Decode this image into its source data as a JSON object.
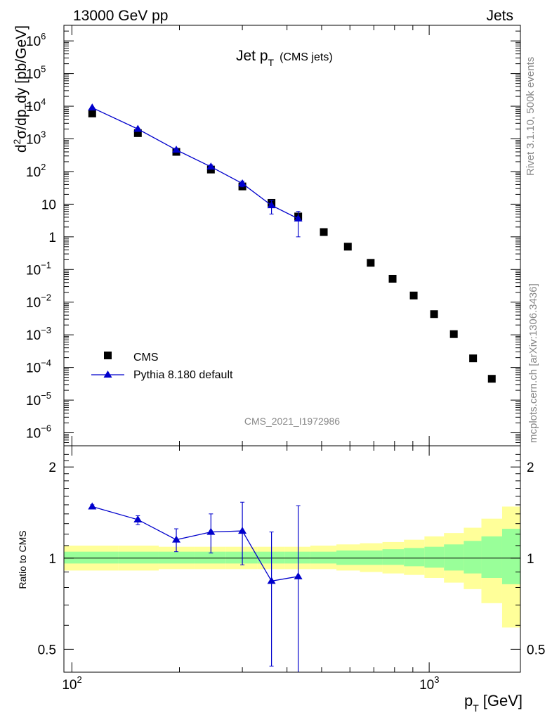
{
  "header": {
    "left": "13000 GeV pp",
    "right": "Jets"
  },
  "side_text": {
    "rivet": "Rivet 3.1.10,  500k events",
    "mcplots": "mcplots.cern.ch [arXiv:1306.3436]"
  },
  "colors": {
    "data": "#000000",
    "mc": "#0000cc",
    "band_inner": "#99ff99",
    "band_outer": "#ffff99",
    "watermark": "#888888"
  },
  "chart_data": [
    {
      "type": "scatter",
      "title_main": "Jet p",
      "title_sub": "T",
      "title_tail": "(CMS jets)",
      "ylabel_parts": [
        "d",
        "2",
        "σ/dp",
        "T",
        "dy [pb/GeV]"
      ],
      "analysis_id": "CMS_2021_I1972986",
      "xscale": "log",
      "yscale": "log",
      "xlim": [
        95,
        1800
      ],
      "ylim": [
        4e-07,
        3000000.0
      ],
      "ytick_labels": [
        {
          "value": 1000000.0,
          "mant": "10",
          "exp": "6"
        },
        {
          "value": 100000.0,
          "mant": "10",
          "exp": "5"
        },
        {
          "value": 10000.0,
          "mant": "10",
          "exp": "4"
        },
        {
          "value": 1000.0,
          "mant": "10",
          "exp": "3"
        },
        {
          "value": 100.0,
          "mant": "10",
          "exp": "2"
        },
        {
          "value": 10,
          "mant": "10",
          "exp": ""
        },
        {
          "value": 1,
          "mant": "1",
          "exp": ""
        },
        {
          "value": 0.1,
          "mant": "10",
          "exp": "−1"
        },
        {
          "value": 0.01,
          "mant": "10",
          "exp": "−2"
        },
        {
          "value": 0.001,
          "mant": "10",
          "exp": "−3"
        },
        {
          "value": 0.0001,
          "mant": "10",
          "exp": "−4"
        },
        {
          "value": 1e-05,
          "mant": "10",
          "exp": "−5"
        },
        {
          "value": 1e-06,
          "mant": "10",
          "exp": "−6"
        }
      ],
      "legend": {
        "placement": "bottom-left",
        "entries": [
          "CMS",
          "Pythia 8.180 default"
        ]
      },
      "series": [
        {
          "name": "CMS",
          "marker": "square",
          "points": [
            {
              "x": 114,
              "y": 6000
            },
            {
              "x": 153,
              "y": 1500
            },
            {
              "x": 196,
              "y": 400
            },
            {
              "x": 245,
              "y": 115
            },
            {
              "x": 300,
              "y": 35
            },
            {
              "x": 362,
              "y": 11
            },
            {
              "x": 430,
              "y": 4.2
            },
            {
              "x": 507,
              "y": 1.4
            },
            {
              "x": 592,
              "y": 0.5
            },
            {
              "x": 686,
              "y": 0.16
            },
            {
              "x": 790,
              "y": 0.052
            },
            {
              "x": 905,
              "y": 0.016
            },
            {
              "x": 1032,
              "y": 0.0043
            },
            {
              "x": 1172,
              "y": 0.00105
            },
            {
              "x": 1327,
              "y": 0.00019
            },
            {
              "x": 1497,
              "y": 4.5e-05
            }
          ]
        },
        {
          "name": "Pythia 8.180 default",
          "marker": "triangle",
          "line": true,
          "points": [
            {
              "x": 114,
              "y": 9000,
              "lo": 8600,
              "hi": 9400
            },
            {
              "x": 153,
              "y": 2000,
              "lo": 1900,
              "hi": 2100
            },
            {
              "x": 196,
              "y": 460,
              "lo": 420,
              "hi": 500
            },
            {
              "x": 245,
              "y": 140,
              "lo": 120,
              "hi": 160
            },
            {
              "x": 300,
              "y": 43,
              "lo": 34,
              "hi": 51
            },
            {
              "x": 362,
              "y": 9.2,
              "lo": 5.0,
              "hi": 13.0
            },
            {
              "x": 430,
              "y": 3.6,
              "lo": 1.0,
              "hi": 6.0
            }
          ]
        }
      ]
    },
    {
      "type": "scatter",
      "ylabel": "Ratio to CMS",
      "xlabel_main": "p",
      "xlabel_sub": "T",
      "xlabel_tail": "[GeV]",
      "xscale": "log",
      "yscale": "log",
      "xlim": [
        95,
        1800
      ],
      "ylim": [
        0.42,
        2.35
      ],
      "ytick_labels": [
        {
          "value": 0.5,
          "label": "0.5"
        },
        {
          "value": 1,
          "label": "1"
        },
        {
          "value": 2,
          "label": "2"
        }
      ],
      "xtick_labels": [
        {
          "value": 100,
          "mant": "10",
          "exp": "2"
        },
        {
          "value": 1000,
          "mant": "10",
          "exp": "3"
        }
      ],
      "reference_line": 1,
      "band_edges": [
        95,
        135,
        175,
        220,
        270,
        330,
        395,
        465,
        550,
        640,
        740,
        850,
        970,
        1100,
        1250,
        1400,
        1600,
        1800
      ],
      "band_outer": [
        [
          0.91,
          1.1
        ],
        [
          0.91,
          1.1
        ],
        [
          0.92,
          1.09
        ],
        [
          0.92,
          1.09
        ],
        [
          0.92,
          1.09
        ],
        [
          0.92,
          1.09
        ],
        [
          0.92,
          1.09
        ],
        [
          0.92,
          1.1
        ],
        [
          0.91,
          1.11
        ],
        [
          0.9,
          1.12
        ],
        [
          0.89,
          1.13
        ],
        [
          0.88,
          1.15
        ],
        [
          0.86,
          1.18
        ],
        [
          0.83,
          1.21
        ],
        [
          0.79,
          1.26
        ],
        [
          0.71,
          1.35
        ],
        [
          0.59,
          1.48
        ]
      ],
      "band_inner": [
        [
          0.96,
          1.05
        ],
        [
          0.96,
          1.05
        ],
        [
          0.96,
          1.05
        ],
        [
          0.96,
          1.05
        ],
        [
          0.96,
          1.05
        ],
        [
          0.96,
          1.05
        ],
        [
          0.96,
          1.05
        ],
        [
          0.96,
          1.05
        ],
        [
          0.95,
          1.06
        ],
        [
          0.95,
          1.06
        ],
        [
          0.95,
          1.07
        ],
        [
          0.94,
          1.08
        ],
        [
          0.93,
          1.09
        ],
        [
          0.91,
          1.11
        ],
        [
          0.89,
          1.14
        ],
        [
          0.86,
          1.18
        ],
        [
          0.82,
          1.25
        ]
      ],
      "series": [
        {
          "name": "Pythia 8.180 default",
          "marker": "triangle",
          "line": true,
          "points": [
            {
              "x": 114,
              "y": 1.48,
              "lo": 1.46,
              "hi": 1.5
            },
            {
              "x": 153,
              "y": 1.34,
              "lo": 1.29,
              "hi": 1.38
            },
            {
              "x": 196,
              "y": 1.15,
              "lo": 1.05,
              "hi": 1.25
            },
            {
              "x": 245,
              "y": 1.22,
              "lo": 1.04,
              "hi": 1.4
            },
            {
              "x": 300,
              "y": 1.23,
              "lo": 0.95,
              "hi": 1.53
            },
            {
              "x": 362,
              "y": 0.84,
              "lo": 0.44,
              "hi": 1.22
            },
            {
              "x": 430,
              "y": 0.87,
              "lo": 0.41,
              "hi": 1.49
            }
          ]
        }
      ]
    }
  ]
}
